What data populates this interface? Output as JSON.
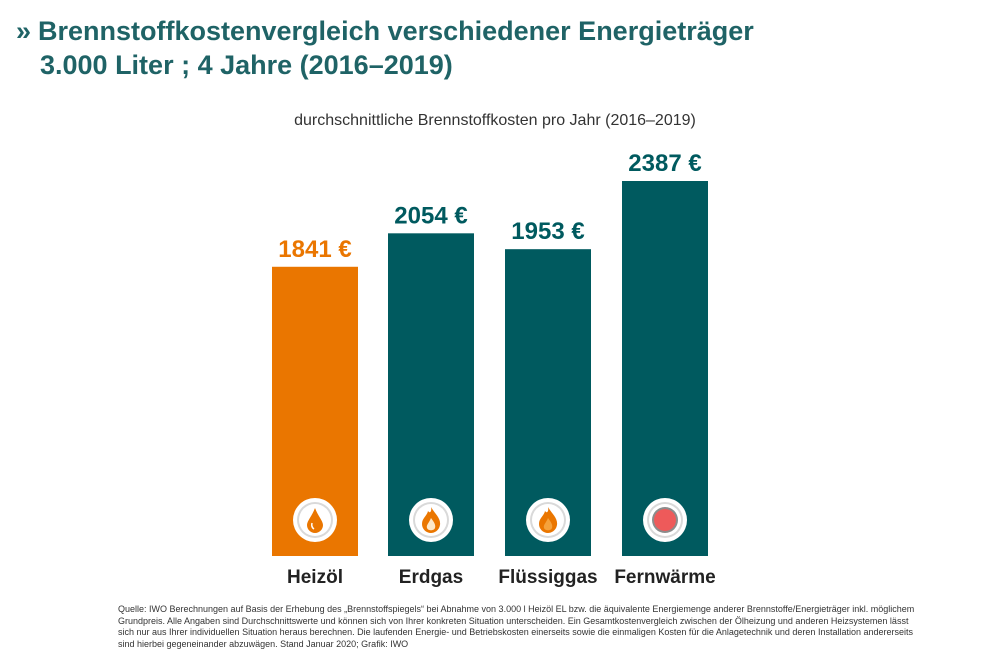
{
  "header": {
    "chevron": "»",
    "title_line1": "Brennstoffkostenvergleich verschiedener Energieträger",
    "title_line2": "3.000 Liter ; 4 Jahre (2016–2019)"
  },
  "chart_data": {
    "type": "bar",
    "title": "durchschnittliche Brennstoffkosten pro Jahr (2016–2019)",
    "categories": [
      "Heizöl",
      "Erdgas",
      "Flüssiggas",
      "Fernwärme"
    ],
    "values": [
      1841,
      2054,
      1953,
      2387
    ],
    "value_labels": [
      "1841 €",
      "2054 €",
      "1953 €",
      "2387 €"
    ],
    "colors": [
      "#ea7600",
      "#005a5f",
      "#005a5f",
      "#005a5f"
    ],
    "label_colors": [
      "#ea7600",
      "#005a5f",
      "#005a5f",
      "#005a5f"
    ],
    "icons": [
      "oil-drop-icon",
      "gas-flame-icon",
      "lpg-flame-icon",
      "district-heat-icon"
    ],
    "ylim": [
      0,
      2387
    ],
    "grid": false,
    "legend": "none"
  },
  "source": "Quelle: IWO Berechnungen auf Basis der Erhebung des „Brennstoffspiegels“ bei Abnahme von 3.000 l Heizöl EL bzw. die äquivalente Energiemenge anderer Brennstoffe/Energieträger inkl. möglichem Grundpreis. Alle Angaben sind Durchschnittswerte und können sich von Ihrer konkreten Situation unterscheiden. Ein Gesamtkostenvergleich zwischen der Ölheizung und anderen Heizsystemen lässt sich nur aus Ihrer individuellen Situation heraus berechnen. Die laufenden Energie- und Betriebskosten einerseits sowie die einmaligen Kosten für die Anlagetechnik und deren Installation andererseits sind hierbei gegeneinander abzuwägen. Stand Januar 2020; Grafik: IWO"
}
